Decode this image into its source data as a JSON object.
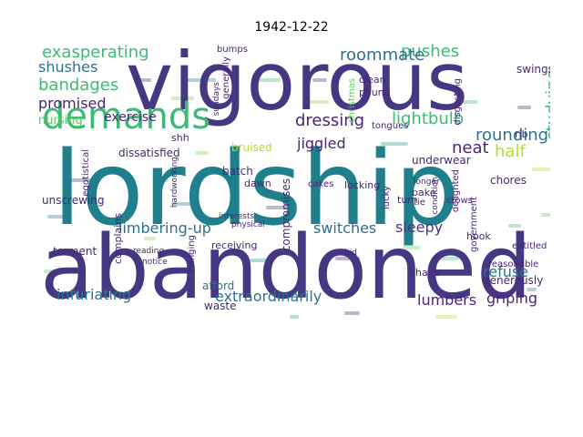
{
  "title": "1942-12-22",
  "colors": {
    "dark": "#453781",
    "purple": "#482677",
    "teal": "#1f7f8c",
    "green": "#5ec962",
    "mint": "#3cbb75",
    "yellowgreen": "#b5de2b",
    "blue": "#2c728e"
  },
  "words": [
    "vigorous",
    "lordship",
    "abandoned",
    "demands",
    "exasperating",
    "pushes",
    "roommate",
    "shushes",
    "bandages",
    "promised",
    "exercise",
    "dressing",
    "lightbulb",
    "rounding",
    "half",
    "studying",
    "neat",
    "jiggled",
    "shh",
    "limbering-up",
    "switches",
    "sleepy",
    "refuse",
    "infuriating",
    "extraordinarily",
    "lumbers",
    "griping",
    "nursing",
    "bruised",
    "dawn",
    "batch",
    "underwear",
    "compromises",
    "unscrewing",
    "torment",
    "complains",
    "hanging",
    "afford",
    "waste",
    "generously",
    "chores",
    "hook",
    "swings",
    "bumps",
    "rib",
    "tongues",
    "cakes",
    "crows",
    "entitled",
    "hardworking",
    "delighted",
    "government",
    "condition",
    "locking",
    "lucky",
    "turn",
    "bake",
    "tie",
    "longer",
    "clean",
    "pound",
    "disgusting",
    "christmas",
    "generally",
    "sundays",
    "egotistical",
    "dissatisfied",
    "receiving",
    "interests",
    "physical",
    "reading",
    "notice",
    "bid",
    "chairs",
    "reasonable"
  ]
}
